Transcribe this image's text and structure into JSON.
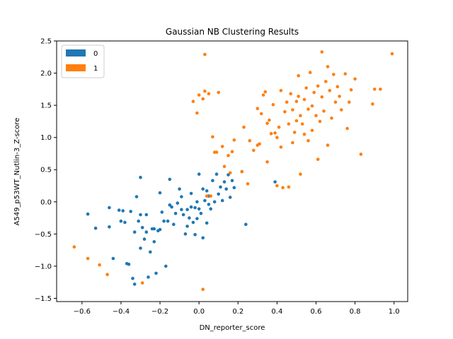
{
  "chart_data": {
    "type": "scatter",
    "title": "Gaussian NB Clustering Results",
    "xlabel": "DN_reporter_score",
    "ylabel": "A549_p53WT_Nutlin-3_Z-score",
    "xlim": [
      -0.73,
      1.07
    ],
    "ylim": [
      -1.55,
      2.5
    ],
    "xticks": [
      -0.6,
      -0.4,
      -0.2,
      0.0,
      0.2,
      0.4,
      0.6,
      0.8,
      1.0
    ],
    "xtick_labels": [
      "−0.6",
      "−0.4",
      "−0.2",
      "0.0",
      "0.2",
      "0.4",
      "0.6",
      "0.8",
      "1.0"
    ],
    "yticks": [
      -1.5,
      -1.0,
      -0.5,
      0.0,
      0.5,
      1.0,
      1.5,
      2.0,
      2.5
    ],
    "ytick_labels": [
      "−1.5",
      "−1.0",
      "−0.5",
      "0.0",
      "0.5",
      "1.0",
      "1.5",
      "2.0",
      "2.5"
    ],
    "grid": false,
    "legend_position": "top-left",
    "series": [
      {
        "name": "0",
        "color": "#1f77b4",
        "points": [
          [
            -0.57,
            -0.19
          ],
          [
            -0.53,
            -0.41
          ],
          [
            -0.46,
            -0.09
          ],
          [
            -0.46,
            -0.39
          ],
          [
            -0.44,
            -0.88
          ],
          [
            -0.41,
            -0.13
          ],
          [
            -0.4,
            -0.3
          ],
          [
            -0.39,
            -0.14
          ],
          [
            -0.38,
            -0.32
          ],
          [
            -0.37,
            -0.96
          ],
          [
            -0.36,
            -0.97
          ],
          [
            -0.35,
            -0.15
          ],
          [
            -0.34,
            -1.19
          ],
          [
            -0.33,
            -1.28
          ],
          [
            -0.33,
            -0.47
          ],
          [
            -0.32,
            0.08
          ],
          [
            -0.31,
            -0.3
          ],
          [
            -0.3,
            0.38
          ],
          [
            -0.3,
            -0.2
          ],
          [
            -0.3,
            -0.72
          ],
          [
            -0.29,
            -0.4
          ],
          [
            -0.28,
            -0.58
          ],
          [
            -0.27,
            -0.2
          ],
          [
            -0.27,
            -0.47
          ],
          [
            -0.26,
            -1.17
          ],
          [
            -0.25,
            -0.78
          ],
          [
            -0.24,
            -0.42
          ],
          [
            -0.23,
            -0.42
          ],
          [
            -0.23,
            -0.62
          ],
          [
            -0.22,
            -1.11
          ],
          [
            -0.21,
            -0.45
          ],
          [
            -0.2,
            -0.43
          ],
          [
            -0.2,
            0.14
          ],
          [
            -0.19,
            -0.16
          ],
          [
            -0.18,
            -0.3
          ],
          [
            -0.17,
            -1.0
          ],
          [
            -0.16,
            -0.3
          ],
          [
            -0.15,
            0.35
          ],
          [
            -0.15,
            -0.05
          ],
          [
            -0.14,
            -0.08
          ],
          [
            -0.13,
            -0.35
          ],
          [
            -0.12,
            -0.18
          ],
          [
            -0.11,
            -0.02
          ],
          [
            -0.1,
            0.2
          ],
          [
            -0.09,
            -0.12
          ],
          [
            -0.09,
            0.08
          ],
          [
            -0.08,
            -0.2
          ],
          [
            -0.07,
            -0.5
          ],
          [
            -0.06,
            -0.12
          ],
          [
            -0.06,
            -0.38
          ],
          [
            -0.05,
            -0.25
          ],
          [
            -0.04,
            0.13
          ],
          [
            -0.04,
            -0.08
          ],
          [
            -0.03,
            -0.32
          ],
          [
            -0.02,
            -0.09
          ],
          [
            -0.02,
            -0.51
          ],
          [
            -0.01,
            0.0
          ],
          [
            -0.01,
            -0.26
          ],
          [
            0.0,
            0.43
          ],
          [
            0.0,
            -0.11
          ],
          [
            0.01,
            -0.18
          ],
          [
            0.02,
            0.2
          ],
          [
            0.02,
            -0.56
          ],
          [
            0.03,
            0.02
          ],
          [
            0.04,
            -0.33
          ],
          [
            0.04,
            0.17
          ],
          [
            0.05,
            0.09
          ],
          [
            0.05,
            -0.04
          ],
          [
            0.06,
            -0.11
          ],
          [
            0.07,
            0.33
          ],
          [
            0.08,
            0.0
          ],
          [
            0.09,
            0.43
          ],
          [
            0.1,
            0.12
          ],
          [
            0.11,
            0.23
          ],
          [
            0.12,
            0.02
          ],
          [
            0.13,
            0.31
          ],
          [
            0.14,
            0.2
          ],
          [
            0.15,
            0.42
          ],
          [
            0.16,
            0.07
          ],
          [
            0.17,
            0.33
          ],
          [
            0.18,
            0.22
          ],
          [
            0.22,
            0.47
          ],
          [
            0.24,
            -0.35
          ],
          [
            0.39,
            0.31
          ]
        ]
      },
      {
        "name": "1",
        "color": "#ff7f0e",
        "points": [
          [
            -0.64,
            -0.7
          ],
          [
            -0.57,
            -0.88
          ],
          [
            -0.51,
            -0.98
          ],
          [
            -0.47,
            -1.13
          ],
          [
            -0.29,
            -1.26
          ],
          [
            -0.03,
            1.56
          ],
          [
            -0.01,
            1.38
          ],
          [
            0.0,
            1.66
          ],
          [
            0.02,
            1.6
          ],
          [
            0.03,
            1.72
          ],
          [
            0.02,
            -1.36
          ],
          [
            0.03,
            2.29
          ],
          [
            0.05,
            1.68
          ],
          [
            0.04,
            0.09
          ],
          [
            0.06,
            0.09
          ],
          [
            0.07,
            1.01
          ],
          [
            0.08,
            0.77
          ],
          [
            0.09,
            0.77
          ],
          [
            0.1,
            1.7
          ],
          [
            0.12,
            0.86
          ],
          [
            0.13,
            0.55
          ],
          [
            0.15,
            0.72
          ],
          [
            0.16,
            0.45
          ],
          [
            0.17,
            0.78
          ],
          [
            0.18,
            0.96
          ],
          [
            0.22,
            0.47
          ],
          [
            0.23,
            1.16
          ],
          [
            0.25,
            0.28
          ],
          [
            0.26,
            0.95
          ],
          [
            0.28,
            0.8
          ],
          [
            0.3,
            0.88
          ],
          [
            0.3,
            1.45
          ],
          [
            0.31,
            0.9
          ],
          [
            0.32,
            1.37
          ],
          [
            0.33,
            1.66
          ],
          [
            0.34,
            1.71
          ],
          [
            0.35,
            1.22
          ],
          [
            0.35,
            0.62
          ],
          [
            0.36,
            1.27
          ],
          [
            0.37,
            1.06
          ],
          [
            0.38,
            1.51
          ],
          [
            0.39,
            1.07
          ],
          [
            0.4,
            1.0
          ],
          [
            0.4,
            0.25
          ],
          [
            0.41,
            1.16
          ],
          [
            0.42,
            1.73
          ],
          [
            0.42,
            0.85
          ],
          [
            0.43,
            0.22
          ],
          [
            0.44,
            1.4
          ],
          [
            0.45,
            1.55
          ],
          [
            0.46,
            1.21
          ],
          [
            0.46,
            0.23
          ],
          [
            0.47,
            1.68
          ],
          [
            0.48,
            1.43
          ],
          [
            0.48,
            0.92
          ],
          [
            0.49,
            1.08
          ],
          [
            0.5,
            1.56
          ],
          [
            0.5,
            1.26
          ],
          [
            0.51,
            1.64
          ],
          [
            0.51,
            1.96
          ],
          [
            0.52,
            1.34
          ],
          [
            0.52,
            0.43
          ],
          [
            0.53,
            1.21
          ],
          [
            0.54,
            1.59
          ],
          [
            0.54,
            1.05
          ],
          [
            0.55,
            1.77
          ],
          [
            0.56,
            1.44
          ],
          [
            0.56,
            0.95
          ],
          [
            0.57,
            2.01
          ],
          [
            0.58,
            1.49
          ],
          [
            0.58,
            1.11
          ],
          [
            0.59,
            1.7
          ],
          [
            0.6,
            1.34
          ],
          [
            0.61,
            1.8
          ],
          [
            0.61,
            0.66
          ],
          [
            0.62,
            1.25
          ],
          [
            0.63,
            1.63
          ],
          [
            0.63,
            2.33
          ],
          [
            0.64,
            1.41
          ],
          [
            0.65,
            1.87
          ],
          [
            0.66,
            2.1
          ],
          [
            0.66,
            0.88
          ],
          [
            0.67,
            1.73
          ],
          [
            0.68,
            1.3
          ],
          [
            0.69,
            1.98
          ],
          [
            0.7,
            1.55
          ],
          [
            0.71,
            1.79
          ],
          [
            0.72,
            1.64
          ],
          [
            0.73,
            1.43
          ],
          [
            0.75,
            1.99
          ],
          [
            0.76,
            1.14
          ],
          [
            0.77,
            1.55
          ],
          [
            0.78,
            1.74
          ],
          [
            0.8,
            1.91
          ],
          [
            0.83,
            0.74
          ],
          [
            0.89,
            1.52
          ],
          [
            0.9,
            1.75
          ],
          [
            0.93,
            1.75
          ],
          [
            0.99,
            2.3
          ]
        ]
      }
    ]
  }
}
